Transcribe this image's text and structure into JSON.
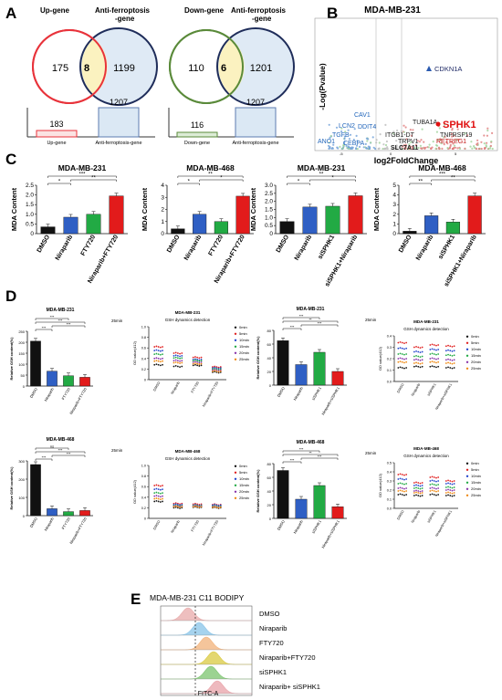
{
  "panels": {
    "A": "A",
    "B": "B",
    "C": "C",
    "D": "D",
    "E": "E"
  },
  "panelA": {
    "venn1": {
      "left_label": "Up-gene",
      "right_label_l1": "Anti-ferroptosis",
      "right_label_l2": "-gene",
      "left_only": "175",
      "overlap": "8",
      "right_only": "1199",
      "bars": [
        {
          "label": "Up-gene",
          "value": "183",
          "num": 183
        },
        {
          "label": "Anti-ferroptosis-gene",
          "value": "1207",
          "num": 1207
        }
      ]
    },
    "venn2": {
      "left_label": "Down-gene",
      "right_label_l1": "Anti-ferroptosis",
      "right_label_l2": "-gene",
      "left_only": "110",
      "overlap": "6",
      "right_only": "1201",
      "bars": [
        {
          "label": "Down-gene",
          "value": "116",
          "num": 116
        },
        {
          "label": "Anti-ferroptosis-gene",
          "value": "1207",
          "num": 1207
        }
      ]
    }
  },
  "panelB": {
    "title": "MDA-MB-231",
    "ylabel": "-Log(Pvalue)",
    "xlabel": "log2FoldChange",
    "labels": [
      {
        "text": "CDKN1A",
        "color": "#1f2a66"
      },
      {
        "text": "CAV1",
        "color": "#2266bb"
      },
      {
        "text": "LCN2",
        "color": "#2266bb"
      },
      {
        "text": "DDIT4",
        "color": "#2266bb"
      },
      {
        "text": "TGFB",
        "color": "#2266bb"
      },
      {
        "text": "ANO1",
        "color": "#2266bb"
      },
      {
        "text": "CEBPA",
        "color": "#2266bb"
      },
      {
        "text": "TUBA1A",
        "color": "#222222"
      },
      {
        "text": "SPHK1",
        "color": "#e01010"
      },
      {
        "text": "ITGB1-DT",
        "color": "#222222"
      },
      {
        "text": "TNFRSF19",
        "color": "#222222"
      },
      {
        "text": "TRPV1",
        "color": "#222222"
      },
      {
        "text": "RETREG1",
        "color": "#c01010"
      },
      {
        "text": "SLC7A11",
        "color": "#222222"
      }
    ],
    "xticks": [
      "-5",
      "0",
      "5"
    ]
  },
  "chart_data": [
    {
      "type": "bar",
      "title": "MDA-MB-231",
      "ylabel": "MDA Content",
      "categories": [
        "DMSO",
        "Niraparib",
        "FTY720",
        "Niraparib+FTY720"
      ],
      "values": [
        0.35,
        0.85,
        1.0,
        1.95
      ],
      "ylim": [
        0,
        2.5
      ],
      "yticks": [
        "0",
        "0.5",
        "1.0",
        "1.5",
        "2.0",
        "2.5"
      ],
      "colors": [
        "#111111",
        "#2f5fc4",
        "#22aa44",
        "#e21b1b"
      ],
      "sig": [
        "*",
        "**",
        "***"
      ]
    },
    {
      "type": "bar",
      "title": "MDA-MB-468",
      "ylabel": "MDA Content",
      "categories": [
        "DMSO",
        "Niraparib",
        "FTY720",
        "Niraparib+FTY720"
      ],
      "values": [
        0.4,
        1.6,
        1.0,
        3.1
      ],
      "ylim": [
        0,
        4
      ],
      "yticks": [
        "0",
        "1",
        "2",
        "3",
        "4"
      ],
      "colors": [
        "#111111",
        "#2f5fc4",
        "#22aa44",
        "#e21b1b"
      ],
      "sig": [
        "*",
        "*",
        "**"
      ]
    },
    {
      "type": "bar",
      "title": "MDA-MB-231",
      "ylabel": "MDA Content",
      "categories": [
        "DMSO",
        "Niraparib",
        "siSPHK1",
        "siSPHK1+Niraparib"
      ],
      "values": [
        0.75,
        1.65,
        1.7,
        2.35
      ],
      "ylim": [
        0,
        3
      ],
      "yticks": [
        "0",
        "0.5",
        "1.0",
        "1.5",
        "2.0",
        "2.5",
        "3.0"
      ],
      "colors": [
        "#111111",
        "#2f5fc4",
        "#22aa44",
        "#e21b1b"
      ],
      "sig": [
        "*",
        "*",
        "**"
      ]
    },
    {
      "type": "bar",
      "title": "MDA-MB-468",
      "ylabel": "MDA Content",
      "categories": [
        "DMSO",
        "Niraparib",
        "siSPHK1",
        "siSPHK1+Niraparib"
      ],
      "values": [
        0.25,
        1.85,
        1.2,
        3.9
      ],
      "ylim": [
        0,
        5
      ],
      "yticks": [
        "0",
        "1",
        "2",
        "3",
        "4",
        "5"
      ],
      "colors": [
        "#111111",
        "#2f5fc4",
        "#22aa44",
        "#e21b1b"
      ],
      "sig": [
        "**",
        "**",
        "***"
      ]
    },
    {
      "type": "bar",
      "title": "MDA-MB-231",
      "ylabel": "Relative GSH content(%)",
      "note": "25min",
      "categories": [
        "DMSO",
        "Niraparib",
        "FTY720",
        "Niraparib+FTY720"
      ],
      "values": [
        205,
        68,
        47,
        40
      ],
      "ylim": [
        0,
        250
      ],
      "yticks": [
        "0",
        "50",
        "100",
        "150",
        "200",
        "250"
      ],
      "colors": [
        "#111111",
        "#2f5fc4",
        "#22aa44",
        "#e21b1b"
      ],
      "sig": [
        "***",
        "***",
        "***",
        "***"
      ]
    },
    {
      "type": "scatter",
      "title": "MDA-MB-231",
      "subtitle": "GSH dynamics detection",
      "ylabel": "OD value(412)",
      "categories": [
        "DMSO",
        "Niraparib",
        "FTY720",
        "Niraparib+FTY720"
      ],
      "ylim": [
        0,
        1.0
      ],
      "yticks": [
        "0",
        "0.2",
        "0.4",
        "0.6",
        "0.8",
        "1.0"
      ],
      "series": [
        {
          "name": "0min",
          "color": "#111111",
          "values": [
            0.28,
            0.25,
            0.27,
            0.14
          ]
        },
        {
          "name": "5min",
          "color": "#e02020",
          "values": [
            0.62,
            0.5,
            0.42,
            0.24
          ]
        },
        {
          "name": "10min",
          "color": "#2244cc",
          "values": [
            0.55,
            0.45,
            0.38,
            0.22
          ]
        },
        {
          "name": "15min",
          "color": "#22aa44",
          "values": [
            0.48,
            0.41,
            0.36,
            0.2
          ]
        },
        {
          "name": "20min",
          "color": "#8833aa",
          "values": [
            0.4,
            0.36,
            0.33,
            0.18
          ]
        },
        {
          "name": "25min",
          "color": "#ee8811",
          "values": [
            0.35,
            0.32,
            0.3,
            0.16
          ]
        }
      ]
    },
    {
      "type": "bar",
      "title": "MDA-MB-231",
      "ylabel": "Relative GSH content(%)",
      "note": "25min",
      "categories": [
        "DMSO",
        "Niraparib",
        "siSPHK1",
        "Niraparib+siSPHK1"
      ],
      "values": [
        65,
        30,
        48,
        20
      ],
      "ylim": [
        0,
        80
      ],
      "yticks": [
        "0",
        "20",
        "40",
        "60",
        "80"
      ],
      "colors": [
        "#111111",
        "#2f5fc4",
        "#22aa44",
        "#e21b1b"
      ],
      "sig": [
        "***",
        "***",
        "**",
        "***"
      ]
    },
    {
      "type": "scatter",
      "title": "MDA-MB-231",
      "subtitle": "GSH dynamics detection",
      "ylabel": "OD value(412)",
      "categories": [
        "DMSO",
        "Niraparib",
        "siSPHK1",
        "Niraparib+siSPHK1"
      ],
      "ylim": [
        0,
        0.4
      ],
      "yticks": [
        "0.0",
        "0.1",
        "0.2",
        "0.3",
        "0.4"
      ],
      "series": [
        {
          "name": "0min",
          "color": "#111111",
          "values": [
            0.12,
            0.13,
            0.13,
            0.12
          ]
        },
        {
          "name": "5min",
          "color": "#e02020",
          "values": [
            0.34,
            0.3,
            0.32,
            0.31
          ]
        },
        {
          "name": "10min",
          "color": "#2244cc",
          "values": [
            0.29,
            0.26,
            0.28,
            0.27
          ]
        },
        {
          "name": "15min",
          "color": "#22aa44",
          "values": [
            0.24,
            0.22,
            0.24,
            0.23
          ]
        },
        {
          "name": "20min",
          "color": "#8833aa",
          "values": [
            0.2,
            0.19,
            0.2,
            0.19
          ]
        },
        {
          "name": "25min",
          "color": "#ee8811",
          "values": [
            0.17,
            0.16,
            0.17,
            0.16
          ]
        }
      ]
    },
    {
      "type": "bar",
      "title": "MDA-MB-468",
      "ylabel": "Relative GSH content(%)",
      "note": "25min",
      "categories": [
        "DMSO",
        "Niraparib",
        "FTY720",
        "Niraparib+FTY720"
      ],
      "values": [
        280,
        38,
        22,
        28
      ],
      "ylim": [
        0,
        300
      ],
      "yticks": [
        "0",
        "100",
        "200",
        "300"
      ],
      "colors": [
        "#111111",
        "#2f5fc4",
        "#22aa44",
        "#e21b1b"
      ],
      "sig": [
        "***",
        "***",
        "***",
        "ns"
      ]
    },
    {
      "type": "scatter",
      "title": "MDA-MB-468",
      "subtitle": "GSH dynamics detection",
      "ylabel": "OD value(412)",
      "categories": [
        "DMSO",
        "Niraparib",
        "FTY720",
        "Niraparib+FTY720"
      ],
      "ylim": [
        0,
        1.0
      ],
      "yticks": [
        "0",
        "0.2",
        "0.4",
        "0.6",
        "0.8",
        "1.0"
      ],
      "series": [
        {
          "name": "0min",
          "color": "#111111",
          "values": [
            0.32,
            0.2,
            0.21,
            0.2
          ]
        },
        {
          "name": "5min",
          "color": "#e02020",
          "values": [
            0.62,
            0.28,
            0.27,
            0.26
          ]
        },
        {
          "name": "10min",
          "color": "#2244cc",
          "values": [
            0.55,
            0.26,
            0.25,
            0.25
          ]
        },
        {
          "name": "15min",
          "color": "#22aa44",
          "values": [
            0.48,
            0.24,
            0.24,
            0.23
          ]
        },
        {
          "name": "20min",
          "color": "#8833aa",
          "values": [
            0.42,
            0.23,
            0.23,
            0.22
          ]
        },
        {
          "name": "25min",
          "color": "#ee8811",
          "values": [
            0.37,
            0.22,
            0.22,
            0.21
          ]
        }
      ]
    },
    {
      "type": "bar",
      "title": "MDA-MB-468",
      "ylabel": "Relative GSH content(%)",
      "note": "25min",
      "categories": [
        "DMSO",
        "Niraparib",
        "siSPHK1",
        "Niraparib+siSPHK1"
      ],
      "values": [
        70,
        28,
        48,
        17
      ],
      "ylim": [
        0,
        80
      ],
      "yticks": [
        "0",
        "20",
        "40",
        "60",
        "80"
      ],
      "colors": [
        "#111111",
        "#2f5fc4",
        "#22aa44",
        "#e21b1b"
      ],
      "sig": [
        "***",
        "***",
        "**",
        "***"
      ]
    },
    {
      "type": "scatter",
      "title": "MDA-MB-468",
      "subtitle": "GSH dynamics detection",
      "ylabel": "OD value(412)",
      "categories": [
        "DMSO",
        "Niraparib",
        "siSPHK1",
        "Niraparib+siSPHK1"
      ],
      "ylim": [
        0,
        0.5
      ],
      "yticks": [
        "0.0",
        "0.1",
        "0.2",
        "0.3",
        "0.4",
        "0.5"
      ],
      "series": [
        {
          "name": "0min",
          "color": "#111111",
          "values": [
            0.15,
            0.14,
            0.15,
            0.14
          ]
        },
        {
          "name": "5min",
          "color": "#e02020",
          "values": [
            0.37,
            0.28,
            0.34,
            0.3
          ]
        },
        {
          "name": "10min",
          "color": "#2244cc",
          "values": [
            0.32,
            0.25,
            0.3,
            0.27
          ]
        },
        {
          "name": "15min",
          "color": "#22aa44",
          "values": [
            0.27,
            0.22,
            0.26,
            0.23
          ]
        },
        {
          "name": "20min",
          "color": "#8833aa",
          "values": [
            0.22,
            0.19,
            0.22,
            0.2
          ]
        },
        {
          "name": "25min",
          "color": "#ee8811",
          "values": [
            0.19,
            0.17,
            0.19,
            0.17
          ]
        }
      ]
    },
    {
      "type": "area",
      "title": "MDA-MB-231 C11 BODIPY",
      "xlabel": "FITC-A",
      "series": [
        {
          "name": "DMSO",
          "color": "#e8aaaa",
          "peak": 0.3
        },
        {
          "name": "Niraparib",
          "color": "#88c4e8",
          "peak": 0.42
        },
        {
          "name": "FTY720",
          "color": "#f2b27a",
          "peak": 0.5
        },
        {
          "name": "Niraparib+FTY720",
          "color": "#d9c940",
          "peak": 0.58
        },
        {
          "name": "siSPHK1",
          "color": "#7bc46e",
          "peak": 0.55
        },
        {
          "name": "Niraparib+ siSPHK1",
          "color": "#e8a2a8",
          "peak": 0.62
        }
      ]
    }
  ]
}
